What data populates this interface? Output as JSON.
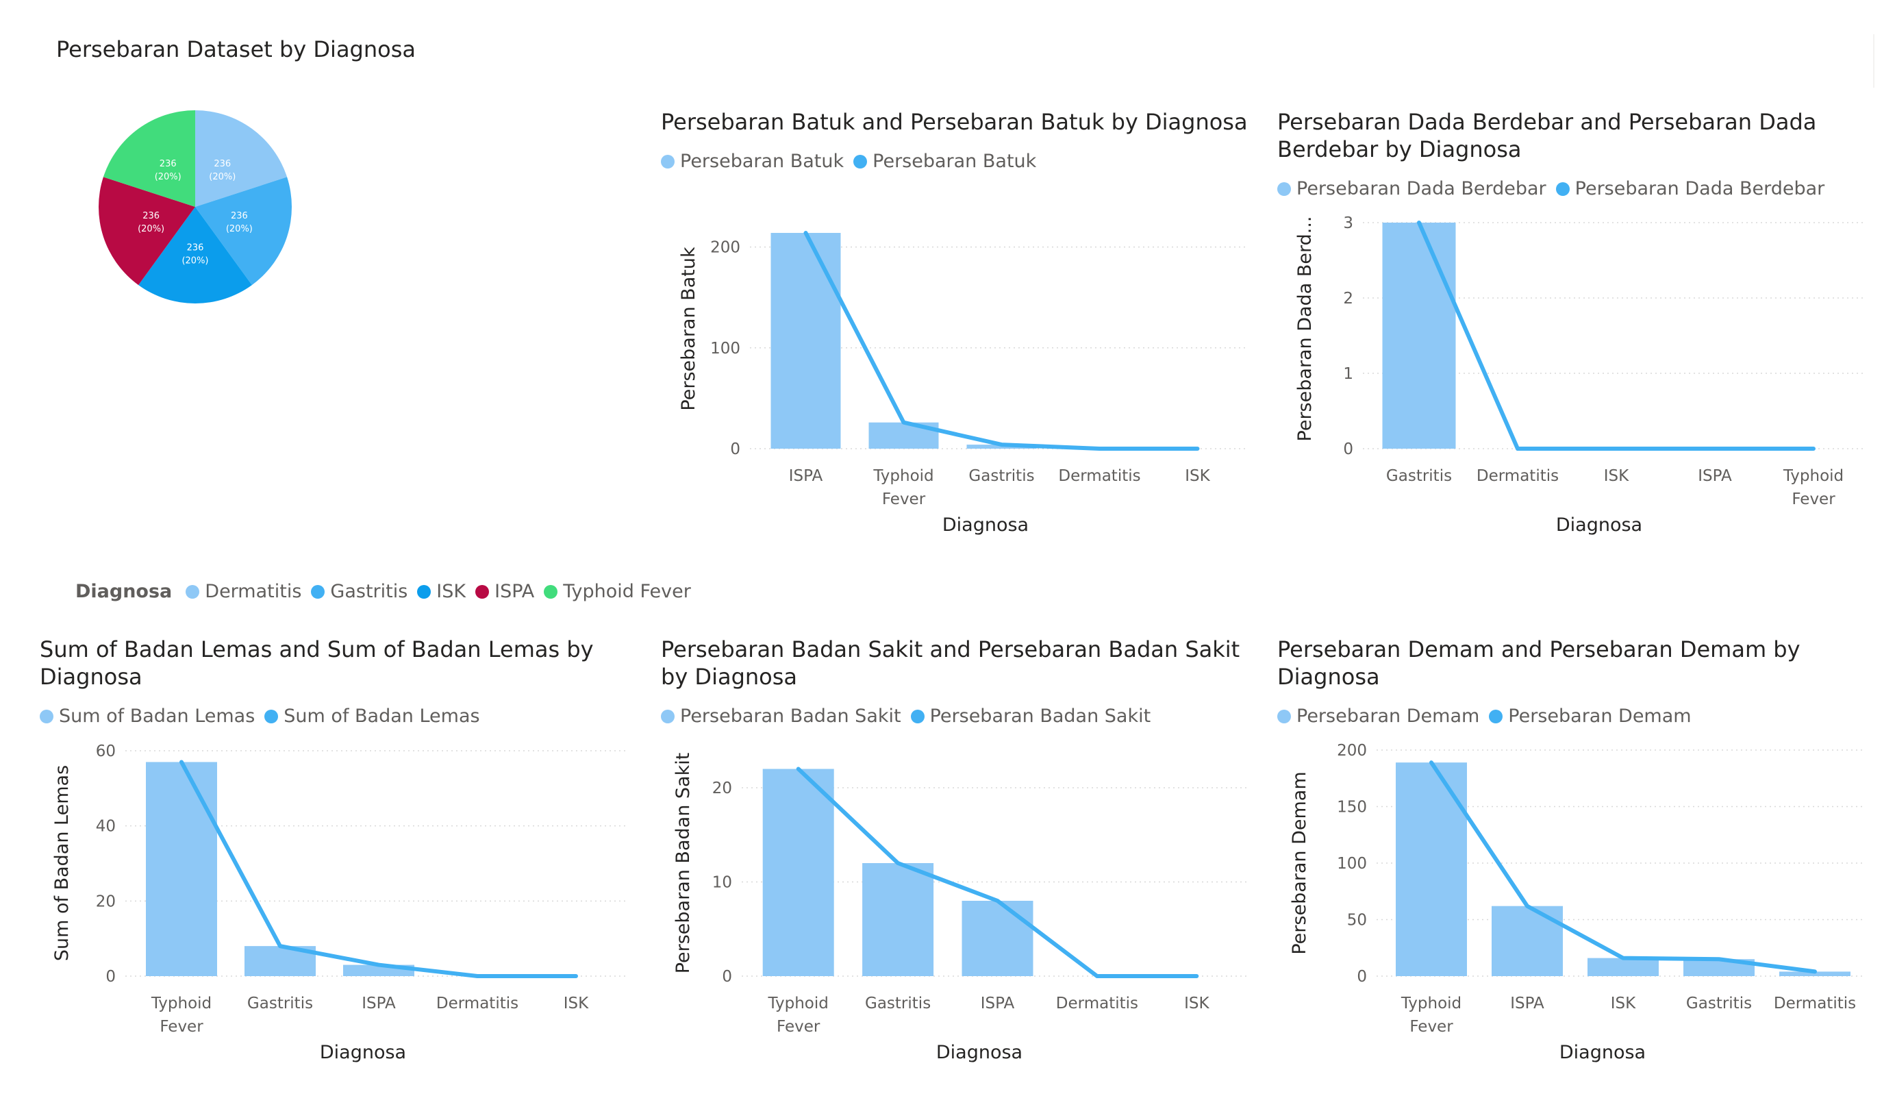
{
  "pie": {
    "title": "Persebaran Dataset by Diagnosa",
    "legend_title": "Diagnosa",
    "slices": [
      {
        "label": "Dermatitis",
        "value": 236,
        "percent": "20%",
        "color": "#8EC8F6"
      },
      {
        "label": "Gastritis",
        "value": 236,
        "percent": "20%",
        "color": "#41B0F3"
      },
      {
        "label": "ISK",
        "value": 236,
        "percent": "20%",
        "color": "#0B9DEC"
      },
      {
        "label": "ISPA",
        "value": 236,
        "percent": "20%",
        "color": "#B80A44"
      },
      {
        "label": "Typhoid Fever",
        "value": 236,
        "percent": "20%",
        "color": "#41DC7C"
      }
    ]
  },
  "chart_data": [
    {
      "type": "bar",
      "title": "Persebaran Batuk and Persebaran Batuk by Diagnosa",
      "legend": [
        "Persebaran Batuk",
        "Persebaran Batuk"
      ],
      "xlabel": "Diagnosa",
      "ylabel": "Persebaran Batuk",
      "categories": [
        [
          "ISPA"
        ],
        [
          "Typhoid",
          "Fever"
        ],
        [
          "Gastritis"
        ],
        [
          "Dermatitis"
        ],
        [
          "ISK"
        ]
      ],
      "series": [
        {
          "name": "Persebaran Batuk",
          "kind": "bar",
          "values": [
            214,
            26,
            4,
            0,
            0
          ]
        },
        {
          "name": "Persebaran Batuk",
          "kind": "line",
          "values": [
            214,
            26,
            4,
            0,
            0
          ]
        }
      ],
      "ylim": [
        0,
        214
      ],
      "yticks": [
        0,
        100,
        200
      ]
    },
    {
      "type": "bar",
      "title": "Persebaran Dada Berdebar and Persebaran Dada Berdebar by Diagnosa",
      "legend": [
        "Persebaran Dada Berdebar",
        "Persebaran Dada Berdebar"
      ],
      "xlabel": "Diagnosa",
      "ylabel": "Persebaran Dada Berd...",
      "categories": [
        [
          "Gastritis"
        ],
        [
          "Dermatitis"
        ],
        [
          "ISK"
        ],
        [
          "ISPA"
        ],
        [
          "Typhoid",
          "Fever"
        ]
      ],
      "series": [
        {
          "name": "Persebaran Dada Berdebar",
          "kind": "bar",
          "values": [
            3,
            0,
            0,
            0,
            0
          ]
        },
        {
          "name": "Persebaran Dada Berdebar",
          "kind": "line",
          "values": [
            3,
            0,
            0,
            0,
            0
          ]
        }
      ],
      "ylim": [
        0,
        3
      ],
      "yticks": [
        0,
        1,
        2,
        3
      ]
    },
    {
      "type": "bar",
      "title": "Sum of Badan Lemas and Sum of Badan Lemas by Diagnosa",
      "legend": [
        "Sum of Badan Lemas",
        "Sum of Badan Lemas"
      ],
      "xlabel": "Diagnosa",
      "ylabel": "Sum of Badan Lemas",
      "categories": [
        [
          "Typhoid",
          "Fever"
        ],
        [
          "Gastritis"
        ],
        [
          "ISPA"
        ],
        [
          "Dermatitis"
        ],
        [
          "ISK"
        ]
      ],
      "series": [
        {
          "name": "Sum of Badan Lemas",
          "kind": "bar",
          "values": [
            57,
            8,
            3,
            0,
            0
          ]
        },
        {
          "name": "Sum of Badan Lemas",
          "kind": "line",
          "values": [
            57,
            8,
            3,
            0,
            0
          ]
        }
      ],
      "ylim": [
        0,
        60
      ],
      "yticks": [
        0,
        20,
        40,
        60
      ]
    },
    {
      "type": "bar",
      "title": "Persebaran Badan Sakit and Persebaran Badan Sakit by Diagnosa",
      "legend": [
        "Persebaran Badan Sakit",
        "Persebaran Badan Sakit"
      ],
      "xlabel": "Diagnosa",
      "ylabel": "Persebaran Badan Sakit",
      "categories": [
        [
          "Typhoid",
          "Fever"
        ],
        [
          "Gastritis"
        ],
        [
          "ISPA"
        ],
        [
          "Dermatitis"
        ],
        [
          "ISK"
        ]
      ],
      "series": [
        {
          "name": "Persebaran Badan Sakit",
          "kind": "bar",
          "values": [
            22,
            12,
            8,
            0,
            0
          ]
        },
        {
          "name": "Persebaran Badan Sakit",
          "kind": "line",
          "values": [
            22,
            12,
            8,
            0,
            0
          ]
        }
      ],
      "ylim": [
        0,
        24
      ],
      "yticks": [
        0,
        10,
        20
      ]
    },
    {
      "type": "bar",
      "title": "Persebaran Demam and Persebaran Demam by Diagnosa",
      "legend": [
        "Persebaran Demam",
        "Persebaran Demam"
      ],
      "xlabel": "Diagnosa",
      "ylabel": "Persebaran Demam",
      "categories": [
        [
          "Typhoid",
          "Fever"
        ],
        [
          "ISPA"
        ],
        [
          "ISK"
        ],
        [
          "Gastritis"
        ],
        [
          "Dermatitis"
        ]
      ],
      "series": [
        {
          "name": "Persebaran Demam",
          "kind": "bar",
          "values": [
            189,
            62,
            16,
            15,
            4
          ]
        },
        {
          "name": "Persebaran Demam",
          "kind": "line",
          "values": [
            189,
            62,
            16,
            15,
            4
          ]
        }
      ],
      "ylim": [
        0,
        200
      ],
      "yticks": [
        0,
        50,
        100,
        150,
        200
      ]
    }
  ],
  "colors": {
    "bar": "#8EC8F6",
    "line": "#41B0F3",
    "grid": "#d8d8d8",
    "axis_text": "#605e5c",
    "title_text": "#252423"
  }
}
